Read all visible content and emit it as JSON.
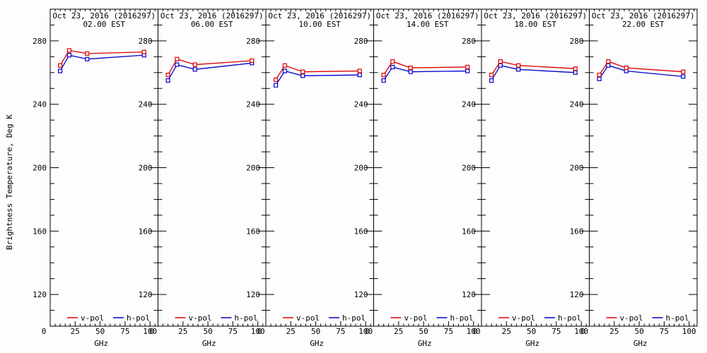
{
  "figure": {
    "y_axis_title": "Brightness Temperature, Deg K",
    "x_axis_unit": "GHz",
    "background": "#fdfdfd",
    "axis_color": "#000000"
  },
  "chart_data": {
    "type": "line",
    "title": "Oct 23, 2016 (2016297)",
    "xlabel": "GHz",
    "ylabel": "Brightness Temperature, Deg K",
    "x": [
      10,
      19,
      37,
      94
    ],
    "xlim": [
      0,
      108
    ],
    "ylim": [
      100,
      300
    ],
    "x_ticks": [
      0,
      25,
      50,
      75,
      100
    ],
    "y_ticks": [
      120,
      160,
      200,
      240,
      280
    ],
    "x_minor_step": 5,
    "y_minor_step": 10,
    "grid": false,
    "legend_position": "bottom-inside",
    "legend": [
      {
        "label": "v-pol",
        "color": "#dd0000"
      },
      {
        "label": "h-pol",
        "color": "#0000cc"
      }
    ],
    "panels": [
      {
        "time": "02.00 EST",
        "series": [
          {
            "name": "v-pol",
            "color": "#dd0000",
            "values": [
              264.5,
              274.0,
              272.0,
              273.0
            ]
          },
          {
            "name": "h-pol",
            "color": "#0000cc",
            "values": [
              261.0,
              271.0,
              268.5,
              271.0
            ]
          }
        ]
      },
      {
        "time": "06.00 EST",
        "series": [
          {
            "name": "v-pol",
            "color": "#dd0000",
            "values": [
              258.5,
              268.5,
              265.0,
              267.5
            ]
          },
          {
            "name": "h-pol",
            "color": "#0000cc",
            "values": [
              255.0,
              265.0,
              262.0,
              266.0
            ]
          }
        ]
      },
      {
        "time": "10.00 EST",
        "series": [
          {
            "name": "v-pol",
            "color": "#dd0000",
            "values": [
              255.5,
              264.5,
              260.5,
              261.0
            ]
          },
          {
            "name": "h-pol",
            "color": "#0000cc",
            "values": [
              252.0,
              261.0,
              258.0,
              258.5
            ]
          }
        ]
      },
      {
        "time": "14.00 EST",
        "series": [
          {
            "name": "v-pol",
            "color": "#dd0000",
            "values": [
              258.5,
              267.0,
              263.0,
              263.5
            ]
          },
          {
            "name": "h-pol",
            "color": "#0000cc",
            "values": [
              255.0,
              263.5,
              260.5,
              261.0
            ]
          }
        ]
      },
      {
        "time": "18.00 EST",
        "series": [
          {
            "name": "v-pol",
            "color": "#dd0000",
            "values": [
              258.5,
              267.0,
              264.5,
              262.5
            ]
          },
          {
            "name": "h-pol",
            "color": "#0000cc",
            "values": [
              255.0,
              264.5,
              262.0,
              260.0
            ]
          }
        ]
      },
      {
        "time": "22.00 EST",
        "series": [
          {
            "name": "v-pol",
            "color": "#dd0000",
            "values": [
              258.5,
              267.0,
              263.0,
              260.5
            ]
          },
          {
            "name": "h-pol",
            "color": "#0000cc",
            "values": [
              256.0,
              264.5,
              261.0,
              257.5
            ]
          }
        ]
      }
    ]
  }
}
